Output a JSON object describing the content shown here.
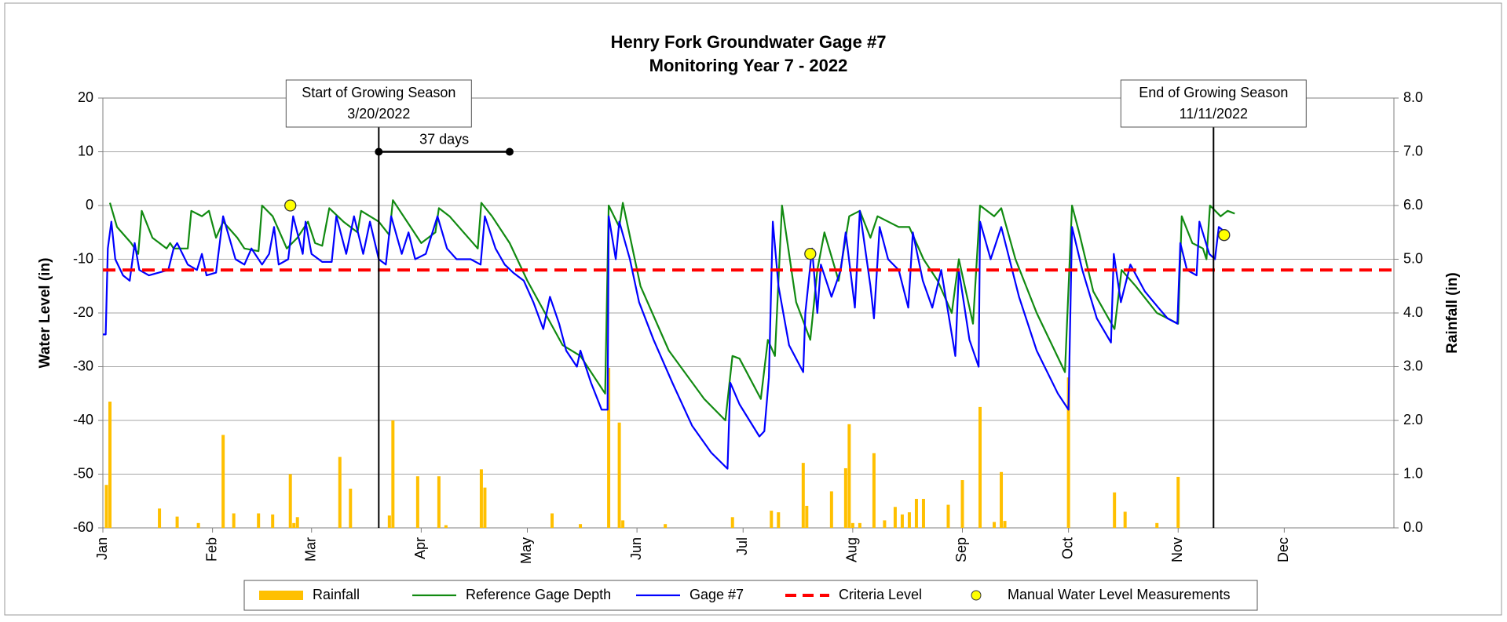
{
  "chart_data": {
    "type": "line",
    "title": "Henry Fork Groundwater Gage #7",
    "subtitle": "Monitoring Year 7 - 2022",
    "ylabel": "Water Level (in)",
    "y2label": "Rainfall (in)",
    "xlim": [
      0,
      365
    ],
    "xticks": [
      {
        "value": 0,
        "label": "Jan"
      },
      {
        "value": 31,
        "label": "Feb"
      },
      {
        "value": 59,
        "label": "Mar"
      },
      {
        "value": 90,
        "label": "Apr"
      },
      {
        "value": 120,
        "label": "May"
      },
      {
        "value": 151,
        "label": "Jun"
      },
      {
        "value": 181,
        "label": "Jul"
      },
      {
        "value": 212,
        "label": "Aug"
      },
      {
        "value": 243,
        "label": "Sep"
      },
      {
        "value": 273,
        "label": "Oct"
      },
      {
        "value": 304,
        "label": "Nov"
      },
      {
        "value": 334,
        "label": "Dec"
      }
    ],
    "ylim": [
      -60,
      20
    ],
    "yticks": [
      -60,
      -50,
      -40,
      -30,
      -20,
      -10,
      0,
      10,
      20
    ],
    "y2lim": [
      0,
      8
    ],
    "y2ticks": [
      {
        "value": 0,
        "label": "0.0"
      },
      {
        "value": 1,
        "label": "1.0"
      },
      {
        "value": 2,
        "label": "2.0"
      },
      {
        "value": 3,
        "label": "3.0"
      },
      {
        "value": 4,
        "label": "4.0"
      },
      {
        "value": 5,
        "label": "5.0"
      },
      {
        "value": 6,
        "label": "6.0"
      },
      {
        "value": 7,
        "label": "7.0"
      },
      {
        "value": 8,
        "label": "8.0"
      }
    ],
    "grid": true,
    "legend": "bottom",
    "series": [
      {
        "name": "Rainfall",
        "type": "bar",
        "axis": "y2",
        "color": "#ffc000",
        "x": [
          1,
          2,
          16,
          21,
          27,
          34,
          37,
          44,
          48,
          53,
          54,
          55,
          67,
          70,
          81,
          82,
          89,
          95,
          97,
          107,
          108,
          127,
          135,
          143,
          146,
          147,
          159,
          178,
          189,
          191,
          198,
          199,
          206,
          210,
          211,
          212,
          214,
          218,
          221,
          224,
          226,
          228,
          230,
          232,
          239,
          243,
          248,
          252,
          254,
          255,
          273,
          286,
          289,
          298,
          304
        ],
        "values": [
          0.8,
          2.35,
          0.36,
          0.21,
          0.09,
          1.73,
          0.27,
          0.27,
          0.25,
          1.0,
          0.09,
          0.2,
          1.32,
          0.73,
          0.23,
          2.0,
          0.96,
          0.96,
          0.05,
          1.09,
          0.75,
          0.27,
          0.07,
          2.98,
          1.96,
          0.14,
          0.07,
          0.2,
          0.32,
          0.29,
          1.21,
          0.41,
          0.68,
          1.11,
          1.93,
          0.09,
          0.09,
          1.39,
          0.14,
          0.39,
          0.25,
          0.29,
          0.54,
          0.54,
          0.43,
          0.89,
          2.25,
          0.11,
          1.04,
          0.13,
          2.8,
          0.66,
          0.3,
          0.09,
          0.95
        ]
      },
      {
        "name": "Reference Gage Depth",
        "type": "line",
        "color": "#118a11",
        "x": [
          2,
          4,
          8,
          10,
          11,
          14,
          18,
          19,
          20,
          24,
          25,
          28,
          30,
          32,
          34,
          38,
          40,
          44,
          45,
          48,
          52,
          55,
          58,
          60,
          62,
          64,
          68,
          72,
          73,
          78,
          81,
          82,
          86,
          90,
          94,
          95,
          98,
          102,
          106,
          107,
          110,
          115,
          120,
          125,
          130,
          135,
          142,
          143,
          146,
          147,
          152,
          160,
          170,
          176,
          178,
          180,
          186,
          188,
          190,
          192,
          196,
          200,
          202,
          204,
          208,
          211,
          214,
          217,
          219,
          225,
          228,
          232,
          236,
          240,
          242,
          246,
          248,
          252,
          254,
          258,
          264,
          272,
          274,
          276,
          280,
          286,
          288,
          292,
          298,
          304,
          305,
          308,
          311,
          312,
          313,
          316,
          318,
          320
        ],
        "values": [
          0.5,
          -4,
          -7,
          -9,
          -1,
          -6,
          -8,
          -7,
          -8,
          -8,
          -1,
          -2,
          -1,
          -6,
          -3,
          -6,
          -8,
          -8.5,
          0,
          -2,
          -8,
          -6,
          -3,
          -7,
          -7.5,
          -0.5,
          -3,
          -5,
          -1,
          -3,
          -5.5,
          1,
          -3,
          -7,
          -5,
          -0.5,
          -2,
          -5,
          -8,
          0.5,
          -2,
          -7,
          -14,
          -20,
          -26,
          -28,
          -35,
          0,
          -4,
          0.5,
          -15,
          -27,
          -36,
          -40,
          -28,
          -28.5,
          -36,
          -25,
          -28,
          0,
          -18,
          -25,
          -12,
          -5,
          -14,
          -2,
          -1,
          -6,
          -2,
          -4,
          -4,
          -10,
          -14,
          -20,
          -10,
          -22,
          0,
          -2,
          -0.5,
          -10,
          -20,
          -31,
          0,
          -5,
          -16,
          -23,
          -12,
          -15,
          -20,
          -22,
          -2,
          -7,
          -8,
          -10,
          0,
          -2,
          -1,
          -1.5
        ]
      },
      {
        "name": "Gage #7",
        "type": "line",
        "color": "#0000ff",
        "x": [
          0,
          0.8,
          1.4,
          2.4,
          3.5,
          5.7,
          7.6,
          9,
          10.3,
          13,
          15.8,
          18.5,
          20,
          21,
          24,
          26.6,
          28,
          29.3,
          32,
          34,
          37.5,
          40,
          42,
          45,
          47,
          48.4,
          49.7,
          52.4,
          53.8,
          56.5,
          57.3,
          59,
          62,
          64.7,
          66,
          68.8,
          71,
          73.6,
          75.5,
          78,
          80,
          81.5,
          84.5,
          86.4,
          88.3,
          91.3,
          94.6,
          97.3,
          100,
          104,
          106.8,
          108,
          111,
          113.6,
          116,
          119,
          121.7,
          124.5,
          126.4,
          129,
          131,
          134,
          135,
          138,
          141,
          142.7,
          143,
          145,
          146,
          149,
          151.6,
          155.7,
          161,
          166.6,
          172,
          176.6,
          177.4,
          180,
          185.6,
          187,
          188.3,
          189.4,
          191,
          194,
          198,
          198.6,
          200.5,
          202,
          203,
          206,
          208.6,
          210,
          212.6,
          214,
          217,
          218,
          219.6,
          222,
          225,
          227.7,
          229,
          231.8,
          234.5,
          237,
          241,
          242,
          245,
          247.6,
          248,
          251,
          254,
          259,
          264,
          270,
          273,
          274,
          276.9,
          281,
          285,
          285.8,
          287.8,
          290.5,
          294.6,
          298.4,
          301,
          303.8,
          304.6,
          306.5,
          309.2,
          310,
          312.8,
          314.4,
          315.5,
          317.4
        ],
        "values": [
          -24,
          -24,
          -8,
          -3,
          -10,
          -13,
          -14,
          -7,
          -12,
          -13,
          -12.5,
          -12,
          -8,
          -7,
          -11,
          -12,
          -9,
          -13,
          -12.5,
          -2,
          -10,
          -11,
          -8,
          -11,
          -9,
          -4,
          -11,
          -10,
          -2,
          -9,
          -3,
          -9,
          -10.5,
          -10.5,
          -2,
          -9,
          -2,
          -9,
          -3,
          -10,
          -11,
          -2,
          -9,
          -5,
          -10,
          -9,
          -2,
          -8,
          -10,
          -10,
          -11,
          -2,
          -8,
          -11,
          -12.5,
          -14,
          -18,
          -23,
          -17,
          -22,
          -27,
          -30,
          -27,
          -33,
          -38,
          -38,
          -2,
          -10,
          -3,
          -10,
          -18,
          -25,
          -33,
          -41,
          -46,
          -49,
          -33,
          -37,
          -43,
          -42,
          -32,
          -3,
          -15,
          -26,
          -31,
          -20,
          -8,
          -20,
          -11,
          -17,
          -12,
          -5,
          -19,
          -1,
          -15,
          -21,
          -4,
          -10,
          -12,
          -19,
          -5,
          -14,
          -19,
          -12,
          -28,
          -12,
          -25,
          -30,
          -3,
          -10,
          -4,
          -17,
          -27,
          -35,
          -38,
          -4,
          -12,
          -21,
          -25.5,
          -9,
          -18,
          -11,
          -16,
          -19,
          -21,
          -22,
          -7,
          -12,
          -13,
          -3,
          -9,
          -10,
          -4,
          -5
        ]
      },
      {
        "name": "Criteria Level",
        "type": "line",
        "dashed": true,
        "color": "#ff0000",
        "x": [
          0,
          365
        ],
        "values": [
          -12,
          -12
        ]
      },
      {
        "name": "Manual Water Level Measurements",
        "type": "scatter",
        "color": "#ffff00",
        "x": [
          53,
          200,
          317
        ],
        "values": [
          0,
          -9,
          -5.5
        ]
      }
    ],
    "annotations": [
      {
        "label": "Start of Growing Season",
        "date": "3/20/2022",
        "x": 78
      },
      {
        "label": "End of Growing Season",
        "date": "11/11/2022",
        "x": 314
      }
    ],
    "span": {
      "label": "37 days",
      "x": [
        78,
        115
      ],
      "y": 10
    }
  }
}
